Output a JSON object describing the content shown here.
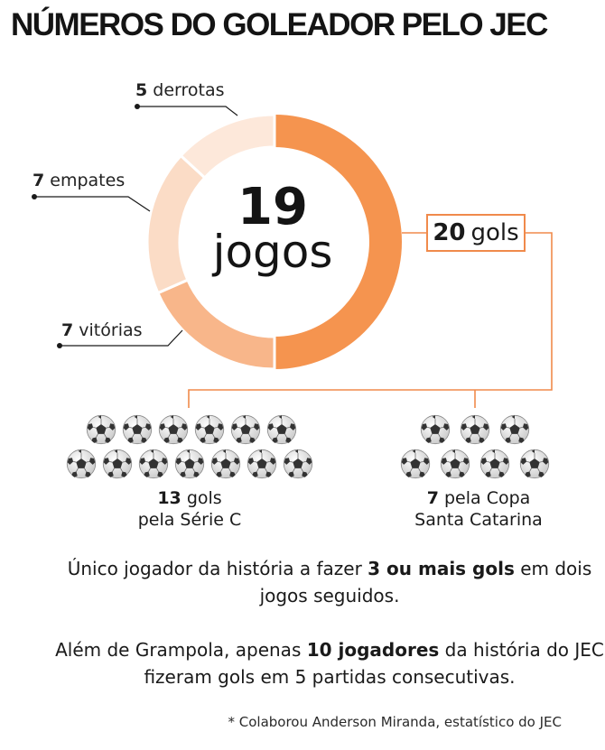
{
  "title": "NÚMEROS DO GOLEADOR PELO JEC",
  "chart_data": {
    "type": "pie",
    "style": "donut",
    "total": 19,
    "total_unit": "jogos",
    "slices": [
      {
        "name": "vitórias",
        "value": 7,
        "color": "#f8b68a"
      },
      {
        "name": "empates",
        "value": 7,
        "color": "#fbdcc6"
      },
      {
        "name": "derrotas",
        "value": 5,
        "color": "#fde8da"
      }
    ],
    "goals_share_color": "#f5944f"
  },
  "labels": {
    "derrotas": {
      "value": "5",
      "text": "derrotas"
    },
    "empates": {
      "value": "7",
      "text": "empates"
    },
    "vitorias": {
      "value": "7",
      "text": "vitórias"
    }
  },
  "center": {
    "number": "19",
    "label": "jogos"
  },
  "goals": {
    "value": "20",
    "text": "gols"
  },
  "breakdown": {
    "serie_c": {
      "count": 13,
      "line1_bold": "13",
      "line1_rest": "gols",
      "line2": "pela Série C"
    },
    "copa_sc": {
      "count": 7,
      "line1_bold": "7",
      "line1_rest": "pela Copa",
      "line2": "Santa Catarina"
    }
  },
  "notes": {
    "note1": {
      "pre": "Único jogador da história a fazer ",
      "bold": "3 ou mais gols",
      "post": " em dois jogos seguidos."
    },
    "note2": {
      "pre": "Além de Grampola, apenas ",
      "bold": "10 jogadores",
      "post": " da história do JEC fizeram gols em 5 partidas consecutivas."
    }
  },
  "footer": "* Colaborou Anderson Miranda, estatístico do JEC",
  "colors": {
    "accent": "#f08a4b",
    "ball_dark": "#3a3a3a",
    "text": "#1a1a1a"
  }
}
